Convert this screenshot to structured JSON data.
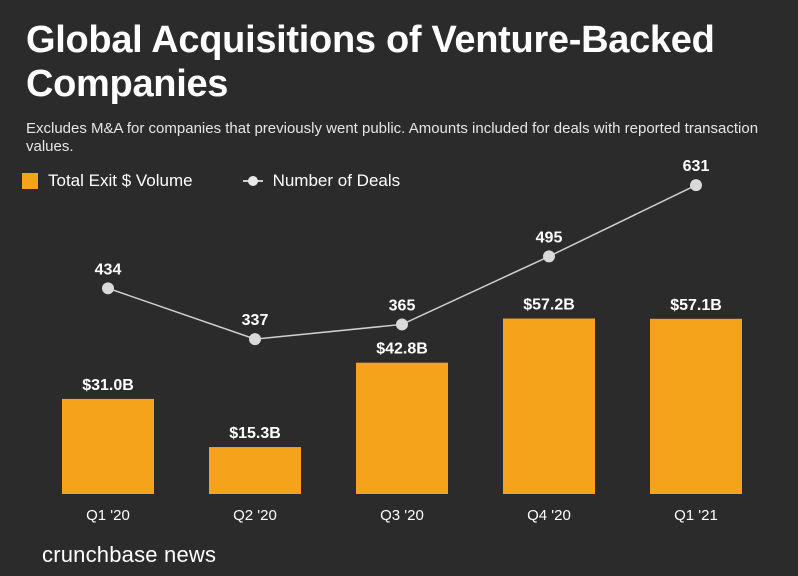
{
  "chart_data": {
    "type": "bar",
    "title": "Global Acquisitions of Venture-Backed Companies",
    "subtitle": "Excludes M&A for companies that previously went public. Amounts included for deals with reported transaction values.",
    "categories": [
      "Q1 '20",
      "Q2 '20",
      "Q3 '20",
      "Q4 '20",
      "Q1 '21"
    ],
    "series": [
      {
        "name": "Total Exit $ Volume",
        "type": "bar",
        "values": [
          31.0,
          15.3,
          42.8,
          57.2,
          57.1
        ],
        "labels": [
          "$31.0B",
          "$15.3B",
          "$42.8B",
          "$57.2B",
          "$57.1B"
        ],
        "color": "#f5a31a"
      },
      {
        "name": "Number of Deals",
        "type": "line",
        "values": [
          434,
          337,
          365,
          495,
          631
        ],
        "labels": [
          "434",
          "337",
          "365",
          "495",
          "631"
        ],
        "color": "#cfcfcf"
      }
    ],
    "xlabel": "",
    "ylabel": "",
    "bar_ylim": [
      0,
      59
    ],
    "line_ylim": [
      320,
      660
    ],
    "legend_position": "top-left",
    "grid": false
  },
  "brand": "crunchbase news"
}
